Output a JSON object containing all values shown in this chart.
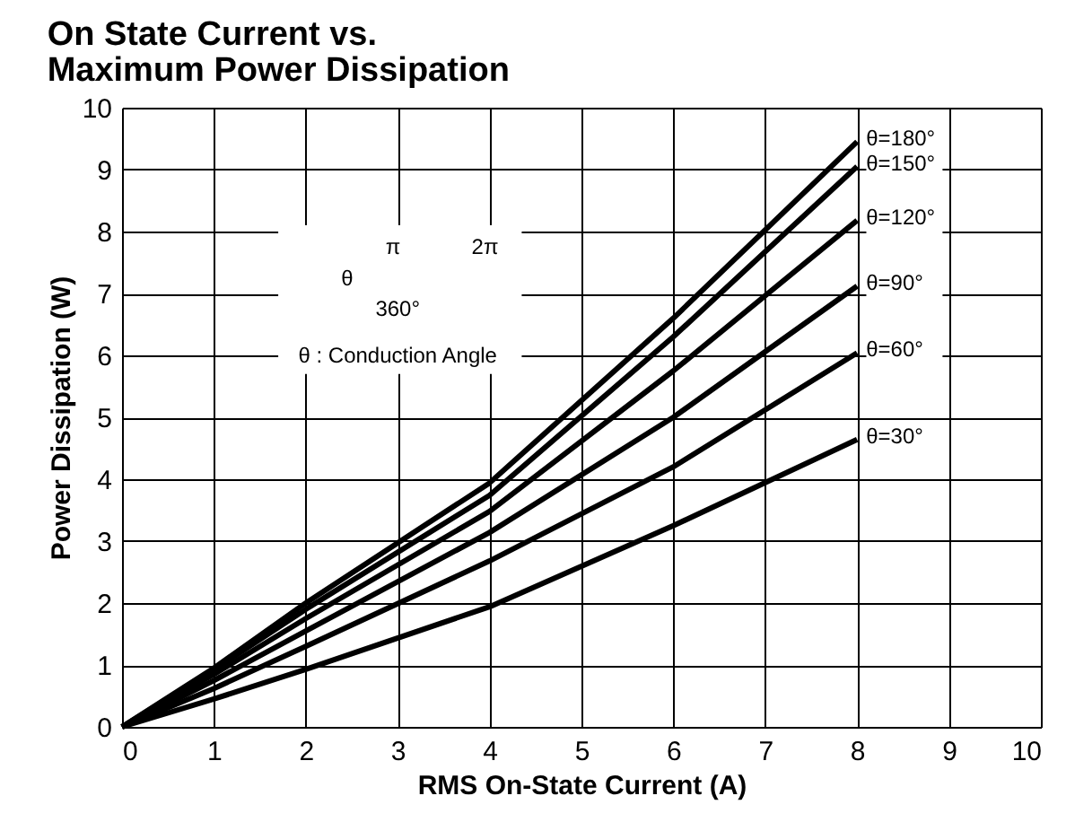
{
  "chart_data": {
    "type": "line",
    "title": "On State Current vs.\nMaximum Power Dissipation",
    "xlabel": "RMS On-State Current (A)",
    "ylabel": "Power Dissipation (W)",
    "x": [
      0,
      1,
      2,
      4,
      6,
      8
    ],
    "series": [
      {
        "name": "θ=180°",
        "color": "#000000",
        "values": [
          0,
          0.95,
          2.0,
          3.94,
          6.6,
          9.45
        ]
      },
      {
        "name": "θ=150°",
        "color": "#000000",
        "values": [
          0,
          0.92,
          1.9,
          3.74,
          6.3,
          9.05
        ]
      },
      {
        "name": "θ=120°",
        "color": "#000000",
        "values": [
          0,
          0.85,
          1.75,
          3.48,
          5.75,
          8.18
        ]
      },
      {
        "name": "θ=90°",
        "color": "#000000",
        "values": [
          0,
          0.75,
          1.55,
          3.14,
          5.0,
          7.12
        ]
      },
      {
        "name": "θ=60°",
        "color": "#000000",
        "values": [
          0,
          0.62,
          1.3,
          2.68,
          4.2,
          6.04
        ]
      },
      {
        "name": "θ=30°",
        "color": "#000000",
        "values": [
          0,
          0.45,
          0.93,
          1.94,
          3.25,
          4.64
        ]
      }
    ],
    "annotations": [
      "θ : Conduction Angle",
      "360°",
      "θ",
      "π",
      "2π"
    ],
    "xlim": [
      0,
      10
    ],
    "ylim": [
      0,
      10
    ],
    "xticks": [
      0,
      1,
      2,
      3,
      4,
      5,
      6,
      7,
      8,
      9,
      10
    ],
    "yticks": [
      0,
      1,
      2,
      3,
      4,
      5,
      6,
      7,
      8,
      9,
      10
    ],
    "grid": true,
    "legend": false,
    "marker": "none",
    "line_style": "solid"
  }
}
